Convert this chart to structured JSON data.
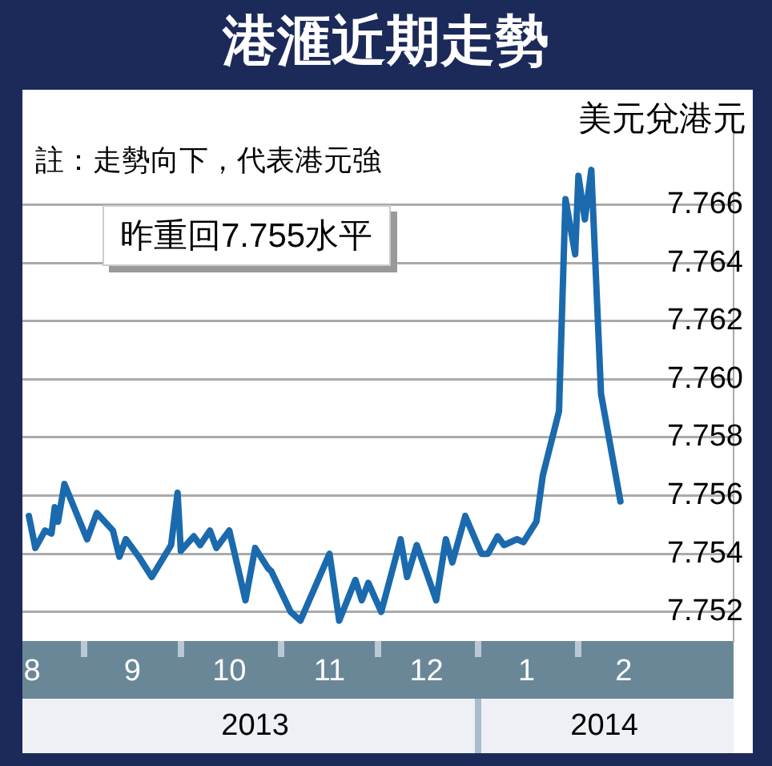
{
  "chart_data": {
    "type": "line",
    "title": "港滙近期走勢",
    "ylabel": "美元兌港元",
    "annotations": [
      "註：走勢向下，代表港元強",
      "昨重回7.755水平"
    ],
    "x": [
      "2013-08-15",
      "2013-08-17",
      "2013-08-20",
      "2013-08-22",
      "2013-08-23",
      "2013-08-24",
      "2013-08-26",
      "2013-09-02",
      "2013-09-05",
      "2013-09-10",
      "2013-09-12",
      "2013-09-14",
      "2013-09-18",
      "2013-09-22",
      "2013-09-28",
      "2013-09-30",
      "2013-10-01",
      "2013-10-05",
      "2013-10-07",
      "2013-10-10",
      "2013-10-12",
      "2013-10-16",
      "2013-10-21",
      "2013-10-24",
      "2013-10-28",
      "2013-10-29",
      "2013-11-04",
      "2013-11-07",
      "2013-11-16",
      "2013-11-19",
      "2013-11-24",
      "2013-11-26",
      "2013-11-28",
      "2013-12-02",
      "2013-12-08",
      "2013-12-10",
      "2013-12-13",
      "2013-12-19",
      "2013-12-22",
      "2013-12-24",
      "2013-12-28",
      "2014-01-02",
      "2014-01-04",
      "2014-01-07",
      "2014-01-09",
      "2014-01-13",
      "2014-01-15",
      "2014-01-19",
      "2014-01-21",
      "2014-01-26",
      "2014-01-28",
      "2014-01-31",
      "2014-02-01",
      "2014-02-03",
      "2014-02-05",
      "2014-02-08",
      "2014-02-14"
    ],
    "series": [
      {
        "color": "#1a6aad",
        "values": [
          7.7553,
          7.7542,
          7.7548,
          7.7547,
          7.7556,
          7.7551,
          7.7564,
          7.7545,
          7.7554,
          7.7548,
          7.7539,
          7.7545,
          7.7539,
          7.7532,
          7.7543,
          7.7561,
          7.7541,
          7.7546,
          7.7543,
          7.7548,
          7.7542,
          7.7548,
          7.7524,
          7.7542,
          7.7535,
          7.7534,
          7.752,
          7.7517,
          7.754,
          7.7517,
          7.7531,
          7.7524,
          7.753,
          7.752,
          7.7545,
          7.7532,
          7.7543,
          7.7524,
          7.7545,
          7.7537,
          7.7553,
          7.754,
          7.754,
          7.7546,
          7.7543,
          7.7545,
          7.7544,
          7.7551,
          7.7567,
          7.7589,
          7.7662,
          7.7643,
          7.767,
          7.7655,
          7.7672,
          7.7595,
          7.7558
        ]
      }
    ],
    "xlim": [
      "2013-08-13",
      "2014-03-21"
    ],
    "xticks": [
      {
        "value": "2013-08-16",
        "label": "8"
      },
      {
        "value": "2013-09-01",
        "label": null
      },
      {
        "value": "2013-09-16",
        "label": "9"
      },
      {
        "value": "2013-10-01",
        "label": null
      },
      {
        "value": "2013-10-16",
        "label": "10"
      },
      {
        "value": "2013-11-01",
        "label": null
      },
      {
        "value": "2013-11-16",
        "label": "11"
      },
      {
        "value": "2013-12-01",
        "label": null
      },
      {
        "value": "2013-12-16",
        "label": "12"
      },
      {
        "value": "2014-01-01",
        "label": null
      },
      {
        "value": "2014-01-16",
        "label": "1"
      },
      {
        "value": "2014-02-01",
        "label": null
      },
      {
        "value": "2014-02-15",
        "label": "2"
      }
    ],
    "x2lim": [
      "2013-08-13",
      "2014-03-21"
    ],
    "x2ticks": [
      {
        "value": "2013-10-24",
        "label": "2013"
      },
      {
        "value": "2014-01-01",
        "label": null
      },
      {
        "value": "2014-02-09",
        "label": "2014"
      }
    ],
    "ylim": [
      7.751,
      7.769
    ],
    "yticks": [
      7.752,
      7.754,
      7.756,
      7.758,
      {
        "value": 7.76,
        "label": "7.760"
      },
      7.762,
      7.764,
      7.766
    ],
    "grid": "y",
    "marker": "none",
    "line_style": "solid"
  }
}
